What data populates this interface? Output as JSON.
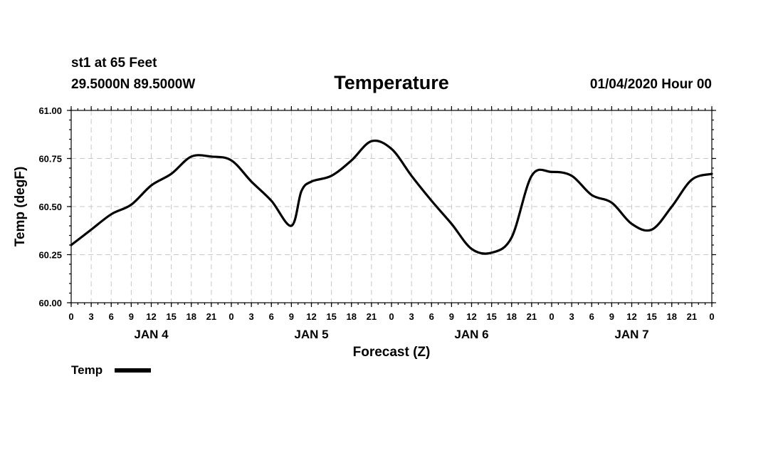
{
  "header": {
    "station": "st1 at 65 Feet",
    "location": "29.5000N 89.5000W",
    "title": "Temperature",
    "valid_time": "01/04/2020 Hour 00"
  },
  "chart_data": {
    "type": "line",
    "title": "Temperature",
    "xlabel": "Forecast (Z)",
    "ylabel": "Temp (degF)",
    "ylim": [
      60.0,
      61.0
    ],
    "yticks": [
      "60.00",
      "60.25",
      "60.50",
      "60.75",
      "61.00"
    ],
    "xlim_hours": [
      0,
      96
    ],
    "xtick_labels": [
      "0",
      "3",
      "6",
      "9",
      "12",
      "15",
      "18",
      "21",
      "0",
      "3",
      "6",
      "9",
      "12",
      "15",
      "18",
      "21",
      "0",
      "3",
      "6",
      "9",
      "12",
      "15",
      "18",
      "21",
      "0",
      "3",
      "6",
      "9",
      "12",
      "15",
      "18",
      "21",
      "0"
    ],
    "day_labels": [
      {
        "label": "JAN 4",
        "hour": 12
      },
      {
        "label": "JAN 5",
        "hour": 36
      },
      {
        "label": "JAN 6",
        "hour": 60
      },
      {
        "label": "JAN 7",
        "hour": 84
      }
    ],
    "grid": true,
    "legend": "bottom-left",
    "series": [
      {
        "name": "Temp",
        "color": "#000000",
        "x": [
          0,
          3,
          6,
          9,
          12,
          15,
          18,
          21,
          24,
          27,
          30,
          33,
          34.5,
          36,
          39,
          42,
          45,
          48,
          51,
          54,
          57,
          60,
          63,
          66,
          69,
          72,
          75,
          78,
          81,
          84,
          87,
          90,
          93,
          96
        ],
        "y": [
          60.3,
          60.38,
          60.46,
          60.51,
          60.61,
          60.67,
          60.76,
          60.76,
          60.74,
          60.63,
          60.53,
          60.4,
          60.58,
          60.63,
          60.66,
          60.74,
          60.84,
          60.8,
          60.66,
          60.53,
          60.41,
          60.28,
          60.26,
          60.34,
          60.66,
          60.68,
          60.66,
          60.56,
          60.52,
          60.41,
          60.38,
          60.5,
          60.64,
          60.67
        ]
      }
    ]
  }
}
